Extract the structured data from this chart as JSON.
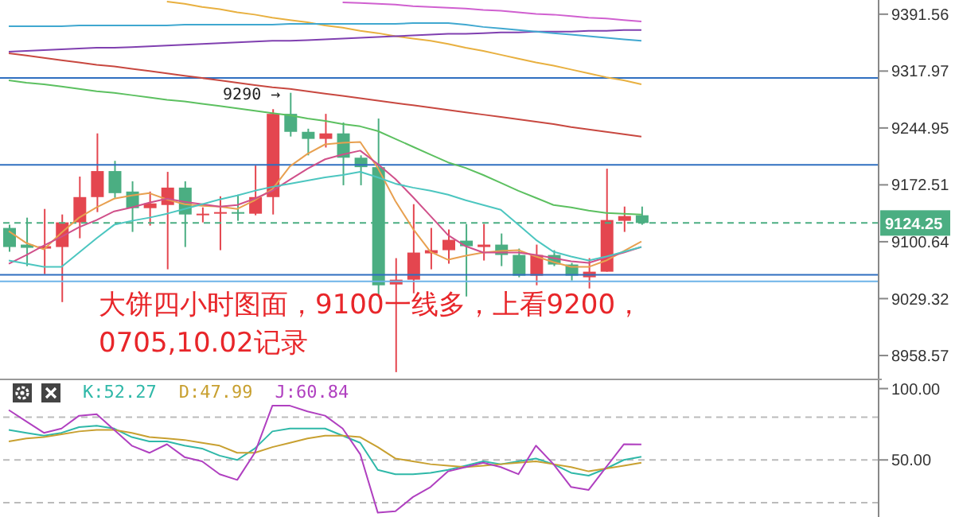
{
  "chart_data": [
    {
      "type": "candlestick",
      "categories": [
        null,
        null,
        null,
        null,
        null,
        null,
        null,
        null,
        null,
        null,
        null,
        null,
        null,
        null,
        null,
        null,
        null,
        null,
        null,
        null,
        null,
        null,
        null,
        null,
        null,
        null,
        null,
        null,
        null,
        null,
        null,
        null,
        null,
        null,
        null,
        null,
        null,
        null,
        null,
        null,
        null,
        null,
        null,
        null,
        null,
        null,
        null,
        null,
        null,
        null
      ],
      "ohlc": [
        [
          9118,
          9122,
          9088,
          9094
        ],
        [
          9097,
          9131,
          9070,
          9093
        ],
        [
          9092,
          9142,
          9060,
          9095
        ],
        [
          9094,
          9135,
          9025,
          9125
        ],
        [
          9125,
          9183,
          9105,
          9157
        ],
        [
          9157,
          9238,
          9138,
          9190
        ],
        [
          9190,
          9203,
          9156,
          9162
        ],
        [
          9164,
          9177,
          9113,
          9143
        ],
        [
          9143,
          9164,
          9121,
          9149
        ],
        [
          9147,
          9189,
          9066,
          9169
        ],
        [
          9169,
          9177,
          9094,
          9135
        ],
        [
          9134,
          9144,
          9125,
          9136
        ],
        [
          9137,
          9158,
          9090,
          9138
        ],
        [
          9138,
          9160,
          9127,
          9136
        ],
        [
          9136,
          9197,
          9134,
          9157
        ],
        [
          9157,
          9269,
          9135,
          9263
        ],
        [
          9263,
          9290,
          9234,
          9240
        ],
        [
          9240,
          9244,
          9210,
          9231
        ],
        [
          9231,
          9263,
          9220,
          9238
        ],
        [
          9238,
          9252,
          9172,
          9207
        ],
        [
          9207,
          9210,
          9172,
          9195
        ],
        [
          9195,
          9257,
          9033,
          9046
        ],
        [
          9047,
          9080,
          8938,
          9053
        ],
        [
          9053,
          9148,
          9036,
          9087
        ],
        [
          9086,
          9118,
          9066,
          9090
        ],
        [
          9090,
          9116,
          9073,
          9103
        ],
        [
          9102,
          9123,
          9032,
          9095
        ],
        [
          9094,
          9123,
          9077,
          9097
        ],
        [
          9097,
          9111,
          9070,
          9084
        ],
        [
          9084,
          9092,
          9056,
          9058
        ],
        [
          9058,
          9097,
          9046,
          9084
        ],
        [
          9084,
          9090,
          9070,
          9072
        ],
        [
          9072,
          9074,
          9052,
          9058
        ],
        [
          9056,
          9080,
          9042,
          9063
        ],
        [
          9063,
          9193,
          9063,
          9128
        ],
        [
          9127,
          9145,
          9113,
          9133
        ],
        [
          9134,
          9145,
          9122,
          9124.25
        ],
        null,
        null,
        null,
        null,
        null,
        null,
        null,
        null,
        null,
        null,
        null,
        null,
        null
      ],
      "colors": [
        "#4bae82",
        "#4bae82",
        "#e4464f",
        "#e4464f",
        "#e4464f",
        "#e4464f",
        "#4bae82",
        "#4bae82",
        "#e4464f",
        "#e4464f",
        "#4bae82",
        "#e4464f",
        "#e4464f",
        "#4bae82",
        "#e4464f",
        "#e4464f",
        "#4bae82",
        "#4bae82",
        "#e4464f",
        "#4bae82",
        "#4bae82",
        "#4bae82",
        "#e4464f",
        "#e4464f",
        "#e4464f",
        "#e4464f",
        "#4bae82",
        "#e4464f",
        "#4bae82",
        "#4bae82",
        "#e4464f",
        "#4bae82",
        "#4bae82",
        "#e4464f",
        "#e4464f",
        "#e4464f",
        "#4bae82",
        null,
        null,
        null,
        null,
        null,
        null,
        null,
        null,
        null,
        null,
        null,
        null,
        null
      ],
      "ylim": [
        8930,
        9410
      ],
      "yticks": [
        8958.57,
        9029.32,
        9100.64,
        9172.51,
        9244.95,
        9317.97,
        9391.56
      ],
      "log": true,
      "tick_labels": "y",
      "ref_lines": [
        {
          "axis": "y",
          "value": 9309,
          "color": "#2f6fc0"
        },
        {
          "axis": "y",
          "value": 9198,
          "color": "#2f6fc0"
        },
        {
          "axis": "y",
          "value": 9059,
          "color": "#2f6fc0"
        },
        {
          "axis": "y",
          "value": 9051,
          "color": "#6db3e8"
        },
        {
          "axis": "y",
          "value": 9124.25,
          "label": "9124.25",
          "color": "#4bae82",
          "line_style": "dashed"
        }
      ],
      "annotations": [
        "9290 →",
        "大饼四小时图面，9100一线多，上看9200，",
        "0705,10.02记录"
      ],
      "series": [
        {
          "type": "line",
          "color": "#e8a050",
          "values": [
            9114,
            9099,
            9091,
            9112,
            9131,
            9144,
            9155,
            9159,
            9162,
            9154,
            9148,
            9146,
            9145,
            9142,
            9153,
            9167,
            9196,
            9212,
            9224,
            9226,
            9227,
            9194,
            9152,
            9117,
            9088,
            9078,
            9083,
            9087,
            9089,
            9090,
            9082,
            9075,
            9069,
            9069,
            9077,
            9089,
            9101,
            null,
            null,
            null,
            null,
            null,
            null,
            null,
            null,
            null,
            null,
            null,
            null,
            null
          ]
        },
        {
          "type": "line",
          "color": "#d0508a",
          "values": [
            9073,
            9084,
            9096,
            9107,
            9119,
            9128,
            9139,
            9144,
            9150,
            9155,
            9151,
            9148,
            9145,
            9147,
            9155,
            9165,
            9179,
            9193,
            9205,
            9211,
            9216,
            9199,
            9180,
            9157,
            9133,
            9109,
            9095,
            9087,
            9087,
            9087,
            9084,
            9080,
            9076,
            9074,
            9081,
            9087,
            9094,
            null,
            null,
            null,
            null,
            null,
            null,
            null,
            null,
            null,
            null,
            null,
            null,
            null
          ]
        },
        {
          "type": "line",
          "color": "#4cc6c0",
          "values": [
            9077,
            9073,
            9069,
            9069,
            9087,
            9105,
            9122,
            9127,
            9131,
            9136,
            9142,
            9148,
            9154,
            9159,
            9165,
            9170,
            9174,
            9178,
            9182,
            9185,
            9189,
            9182,
            9174,
            9169,
            9165,
            9160,
            9153,
            9147,
            9141,
            9122,
            9103,
            9088,
            9082,
            9077,
            9082,
            9088,
            9094,
            null,
            null,
            null,
            null,
            null,
            null,
            null,
            null,
            null,
            null,
            null,
            null,
            null
          ]
        },
        {
          "type": "line",
          "color": "#5cc060",
          "values": [
            9306,
            9303,
            9301,
            9298,
            9295,
            9292,
            9290,
            9287,
            9284,
            9281,
            9279,
            9276,
            9273,
            9270,
            9267,
            9264,
            9261,
            9257,
            9254,
            9250,
            9247,
            9241,
            9231,
            9221,
            9211,
            9201,
            9194,
            9185,
            9175,
            9165,
            9156,
            9147,
            9144,
            9140,
            9137,
            9136,
            9135,
            null,
            null,
            null,
            null,
            null,
            null,
            null,
            null,
            null,
            null,
            null,
            null,
            null
          ]
        },
        {
          "type": "line",
          "color": "#c84840",
          "values": [
            9341,
            9338,
            9335,
            9332,
            9329,
            9326,
            9324,
            9321,
            9318,
            9315,
            9312,
            9309,
            9306,
            9303,
            9300,
            9297,
            9295,
            9292,
            9289,
            9286,
            9283,
            9280,
            9277,
            9274,
            9271,
            9268,
            9265,
            9262,
            9259,
            9256,
            9253,
            9250,
            9246,
            9243,
            9240,
            9237,
            9234,
            null,
            null,
            null,
            null,
            null,
            null,
            null,
            null,
            null,
            null,
            null,
            null,
            null
          ]
        },
        {
          "type": "line",
          "color": "#e8b040",
          "values": [
            null,
            null,
            null,
            null,
            null,
            null,
            null,
            null,
            null,
            9408,
            9405,
            9401,
            9398,
            9394,
            9391,
            9387,
            9384,
            9381,
            9377,
            9374,
            9370,
            9367,
            9363,
            9360,
            9357,
            9353,
            9348,
            9344,
            9339,
            9334,
            9329,
            9325,
            9320,
            9315,
            9310,
            9306,
            9301,
            null,
            null,
            null,
            null,
            null,
            null,
            null,
            null,
            null,
            null,
            null,
            null,
            null
          ]
        },
        {
          "type": "line",
          "color": "#8040b0",
          "values": [
            9343,
            9344,
            9345,
            9346,
            9347,
            9348,
            9348,
            9349,
            9350,
            9351,
            9352,
            9353,
            9354,
            9355,
            9356,
            9357,
            9357,
            9358,
            9359,
            9360,
            9361,
            9362,
            9363,
            9364,
            9365,
            9366,
            9366,
            9367,
            9368,
            9368,
            9369,
            9369,
            9369,
            9370,
            9370,
            9371,
            9371,
            null,
            null,
            null,
            null,
            null,
            null,
            null,
            null,
            null,
            null,
            null,
            null,
            null
          ]
        },
        {
          "type": "line",
          "color": "#40a8d0",
          "values": [
            9376,
            9376,
            9376,
            9376,
            9377,
            9377,
            9377,
            9377,
            9377,
            9377,
            9378,
            9378,
            9378,
            9378,
            9378,
            9378,
            9379,
            9379,
            9379,
            9379,
            9379,
            9379,
            9379,
            9380,
            9380,
            9380,
            9378,
            9375,
            9373,
            9371,
            9369,
            9367,
            9365,
            9363,
            9361,
            9359,
            9357,
            null,
            null,
            null,
            null,
            null,
            null,
            null,
            null,
            null,
            null,
            null,
            null,
            null
          ]
        },
        {
          "type": "line",
          "color": "#d060d0",
          "values": [
            null,
            null,
            null,
            null,
            null,
            null,
            null,
            null,
            null,
            null,
            null,
            null,
            null,
            null,
            null,
            null,
            null,
            null,
            null,
            9407,
            9406,
            9405,
            9404,
            9402,
            9401,
            9400,
            9399,
            9397,
            9396,
            9394,
            9392,
            9391,
            9389,
            9387,
            9386,
            9384,
            9382,
            null,
            null,
            null,
            null,
            null,
            null,
            null,
            null,
            null,
            null,
            null,
            null,
            null
          ]
        }
      ]
    },
    {
      "type": "line",
      "categories": [
        null,
        null,
        null,
        null,
        null,
        null,
        null,
        null,
        null,
        null,
        null,
        null,
        null,
        null,
        null,
        null,
        null,
        null,
        null,
        null,
        null,
        null,
        null,
        null,
        null,
        null,
        null,
        null,
        null,
        null,
        null,
        null,
        null,
        null,
        null,
        null,
        null,
        null,
        null,
        null,
        null,
        null,
        null,
        null,
        null,
        null,
        null,
        null,
        null,
        null
      ],
      "series": [
        {
          "name": "K:52.27",
          "color": "#2fb8a8",
          "values": [
            71,
            69,
            67,
            69,
            73,
            74,
            72,
            66,
            63,
            63,
            60,
            58,
            53,
            50,
            58,
            70,
            72,
            72,
            72,
            67,
            62,
            43,
            40,
            40,
            41,
            43,
            46,
            49,
            47,
            49,
            51,
            47,
            41,
            39,
            44,
            50,
            52.27,
            null,
            null,
            null,
            null,
            null,
            null,
            null,
            null,
            null,
            null,
            null,
            null,
            null
          ]
        },
        {
          "name": "D:47.99",
          "color": "#c8a030",
          "values": [
            63,
            65,
            66,
            68,
            70,
            71,
            71,
            69,
            66,
            65,
            64,
            62,
            60,
            55,
            55,
            59,
            62,
            65,
            67,
            67,
            66,
            59,
            51,
            49,
            47,
            46,
            45,
            46,
            47,
            48,
            49,
            47,
            45,
            42,
            44,
            46,
            47.99,
            null,
            null,
            null,
            null,
            null,
            null,
            null,
            null,
            null,
            null,
            null,
            null,
            null
          ]
        },
        {
          "name": "J:60.84",
          "color": "#b040c0",
          "values": [
            85,
            77,
            69,
            72,
            81,
            82,
            71,
            60,
            55,
            61,
            52,
            49,
            40,
            36,
            55,
            88,
            88,
            84,
            81,
            72,
            54,
            13,
            14,
            24,
            31,
            42,
            45,
            48,
            45,
            40,
            60,
            47,
            31,
            29,
            45,
            61,
            60.84,
            null,
            null,
            null,
            null,
            null,
            null,
            null,
            null,
            null,
            null,
            null,
            null,
            null
          ]
        }
      ],
      "ylim": [
        10,
        107
      ],
      "yticks": [
        {
          "value": 100,
          "label": "100.00"
        },
        {
          "value": 50,
          "label": "50.00"
        }
      ],
      "tick_labels": "y",
      "legend": "top left",
      "ref_lines": [
        {
          "axis": "y",
          "value": 80,
          "color": "#bbbbbb",
          "line_style": "dashed"
        },
        {
          "axis": "y",
          "value": 50,
          "color": "#bbbbbb",
          "line_style": "dashed"
        },
        {
          "axis": "y",
          "value": 20,
          "color": "#bbbbbb",
          "line_style": "dashed"
        }
      ]
    }
  ]
}
